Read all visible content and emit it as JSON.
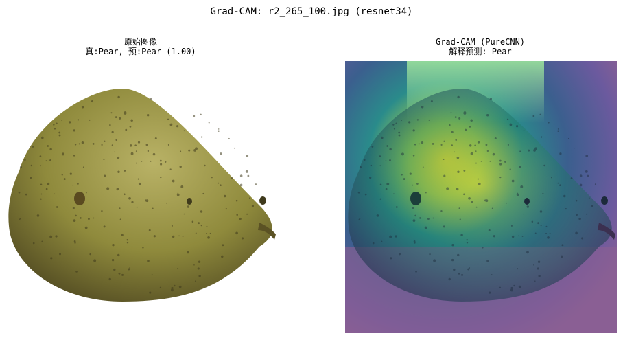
{
  "figure": {
    "suptitle": "Grad-CAM: r2_265_100.jpg (resnet34)"
  },
  "panels": [
    {
      "title_line1": "原始图像",
      "title_line2": "真:Pear, 预:Pear (1.00)",
      "image": "pear-photo"
    },
    {
      "title_line1": "Grad-CAM (PureCNN)",
      "title_line2": "解释预测: Pear",
      "image": "pear-heatmap-overlay"
    }
  ],
  "colors": {
    "pear_body": "#8f8a3c",
    "pear_shadow": "#3f3a1c",
    "pear_highlight": "#b9b266",
    "heatmap_low": "#482878",
    "heatmap_mid": "#2a8b8b",
    "heatmap_high": "#f2e62a"
  }
}
